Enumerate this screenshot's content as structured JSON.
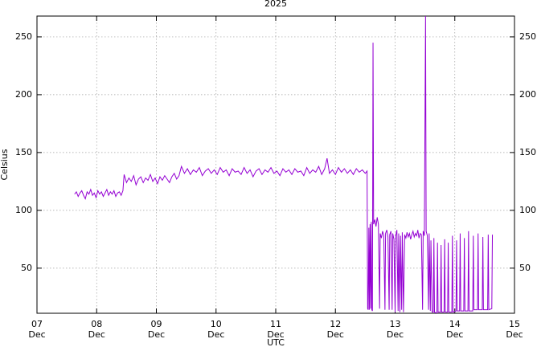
{
  "chart_data": {
    "type": "line",
    "title": "2025",
    "y_label": "Celsius",
    "x_label": "UTC",
    "x_month": "Dec",
    "color": "#9400d3",
    "grid": true,
    "xlim": [
      7,
      15
    ],
    "xticks": [
      {
        "value": 7,
        "label": "07"
      },
      {
        "value": 8,
        "label": "08"
      },
      {
        "value": 9,
        "label": "09"
      },
      10,
      11,
      12,
      13,
      14,
      15
    ],
    "ylim": [
      11,
      268
    ],
    "yticks": [
      50,
      100,
      150,
      200,
      250
    ],
    "x": [
      7.63,
      7.66,
      7.69,
      7.72,
      7.75,
      7.78,
      7.81,
      7.84,
      7.87,
      7.9,
      7.93,
      7.96,
      7.99,
      8.02,
      8.05,
      8.08,
      8.11,
      8.14,
      8.17,
      8.2,
      8.23,
      8.26,
      8.29,
      8.32,
      8.35,
      8.38,
      8.41,
      8.44,
      8.46,
      8.5,
      8.54,
      8.58,
      8.62,
      8.66,
      8.7,
      8.74,
      8.78,
      8.82,
      8.86,
      8.9,
      8.94,
      8.98,
      9.02,
      9.06,
      9.1,
      9.14,
      9.18,
      9.22,
      9.26,
      9.3,
      9.34,
      9.38,
      9.42,
      9.47,
      9.52,
      9.57,
      9.62,
      9.67,
      9.72,
      9.77,
      9.82,
      9.87,
      9.92,
      9.97,
      10.02,
      10.07,
      10.12,
      10.17,
      10.22,
      10.27,
      10.32,
      10.37,
      10.42,
      10.47,
      10.52,
      10.57,
      10.62,
      10.67,
      10.72,
      10.77,
      10.82,
      10.87,
      10.92,
      10.97,
      11.02,
      11.07,
      11.12,
      11.17,
      11.22,
      11.27,
      11.32,
      11.37,
      11.42,
      11.47,
      11.52,
      11.57,
      11.62,
      11.67,
      11.72,
      11.77,
      11.82,
      11.86,
      11.9,
      11.95,
      12.0,
      12.05,
      12.1,
      12.15,
      12.2,
      12.25,
      12.3,
      12.35,
      12.4,
      12.45,
      12.5,
      12.53,
      12.54,
      12.55,
      12.56,
      12.57,
      12.58,
      12.59,
      12.6,
      12.61,
      12.62,
      12.63,
      12.64,
      12.66,
      12.68,
      12.7,
      12.72,
      12.74,
      12.75,
      12.77,
      12.79,
      12.81,
      12.83,
      12.84,
      12.86,
      12.88,
      12.9,
      12.91,
      12.93,
      12.95,
      12.96,
      12.98,
      13.0,
      13.01,
      13.03,
      13.05,
      13.06,
      13.08,
      13.09,
      13.11,
      13.12,
      13.14,
      13.16,
      13.18,
      13.2,
      13.22,
      13.24,
      13.26,
      13.28,
      13.3,
      13.32,
      13.34,
      13.36,
      13.38,
      13.4,
      13.42,
      13.44,
      13.46,
      13.47,
      13.49,
      13.51,
      13.52,
      13.54,
      13.56,
      13.57,
      13.59,
      13.6,
      13.62,
      13.64,
      13.65,
      13.66,
      13.7,
      13.71,
      13.72,
      13.76,
      13.77,
      13.78,
      13.82,
      13.83,
      13.84,
      13.88,
      13.89,
      13.9,
      13.95,
      13.96,
      13.97,
      14.02,
      14.03,
      14.04,
      14.08,
      14.09,
      14.1,
      14.15,
      14.16,
      14.17,
      14.22,
      14.23,
      14.24,
      14.3,
      14.31,
      14.32,
      14.38,
      14.39,
      14.4,
      14.46,
      14.47,
      14.48,
      14.55,
      14.56,
      14.57,
      14.62,
      14.63
    ],
    "values": [
      114,
      116,
      112,
      115,
      117,
      113,
      110,
      116,
      114,
      118,
      113,
      115,
      111,
      117,
      114,
      116,
      112,
      115,
      118,
      113,
      116,
      114,
      117,
      112,
      115,
      116,
      113,
      117,
      131,
      124,
      128,
      125,
      130,
      122,
      127,
      129,
      124,
      128,
      126,
      131,
      125,
      128,
      123,
      129,
      126,
      130,
      127,
      124,
      129,
      132,
      127,
      130,
      138,
      132,
      136,
      131,
      135,
      133,
      137,
      130,
      134,
      136,
      132,
      135,
      131,
      137,
      133,
      135,
      130,
      136,
      133,
      134,
      131,
      137,
      132,
      135,
      129,
      134,
      136,
      131,
      135,
      133,
      137,
      132,
      134,
      130,
      136,
      133,
      135,
      131,
      136,
      133,
      134,
      130,
      137,
      132,
      135,
      133,
      138,
      131,
      136,
      145,
      132,
      135,
      131,
      137,
      133,
      136,
      132,
      135,
      131,
      136,
      133,
      135,
      132,
      134,
      15,
      14,
      85,
      14,
      88,
      15,
      90,
      14,
      13,
      245,
      88,
      92,
      86,
      94,
      88,
      15,
      80,
      76,
      82,
      78,
      14,
      80,
      83,
      77,
      14,
      79,
      82,
      14,
      80,
      75,
      12,
      78,
      83,
      13,
      80,
      12,
      78,
      14,
      81,
      12,
      79,
      76,
      81,
      77,
      80,
      75,
      79,
      82,
      77,
      80,
      78,
      83,
      76,
      80,
      79,
      14,
      82,
      78,
      268,
      82,
      78,
      14,
      80,
      13,
      74,
      12,
      12,
      76,
      12,
      11,
      72,
      12,
      12,
      70,
      12,
      12,
      75,
      12,
      12,
      72,
      12,
      12,
      78,
      12,
      13,
      74,
      13,
      13,
      80,
      13,
      13,
      76,
      13,
      13,
      82,
      13,
      13,
      78,
      14,
      14,
      80,
      14,
      14,
      77,
      14,
      14,
      79,
      14,
      15,
      79
    ]
  }
}
